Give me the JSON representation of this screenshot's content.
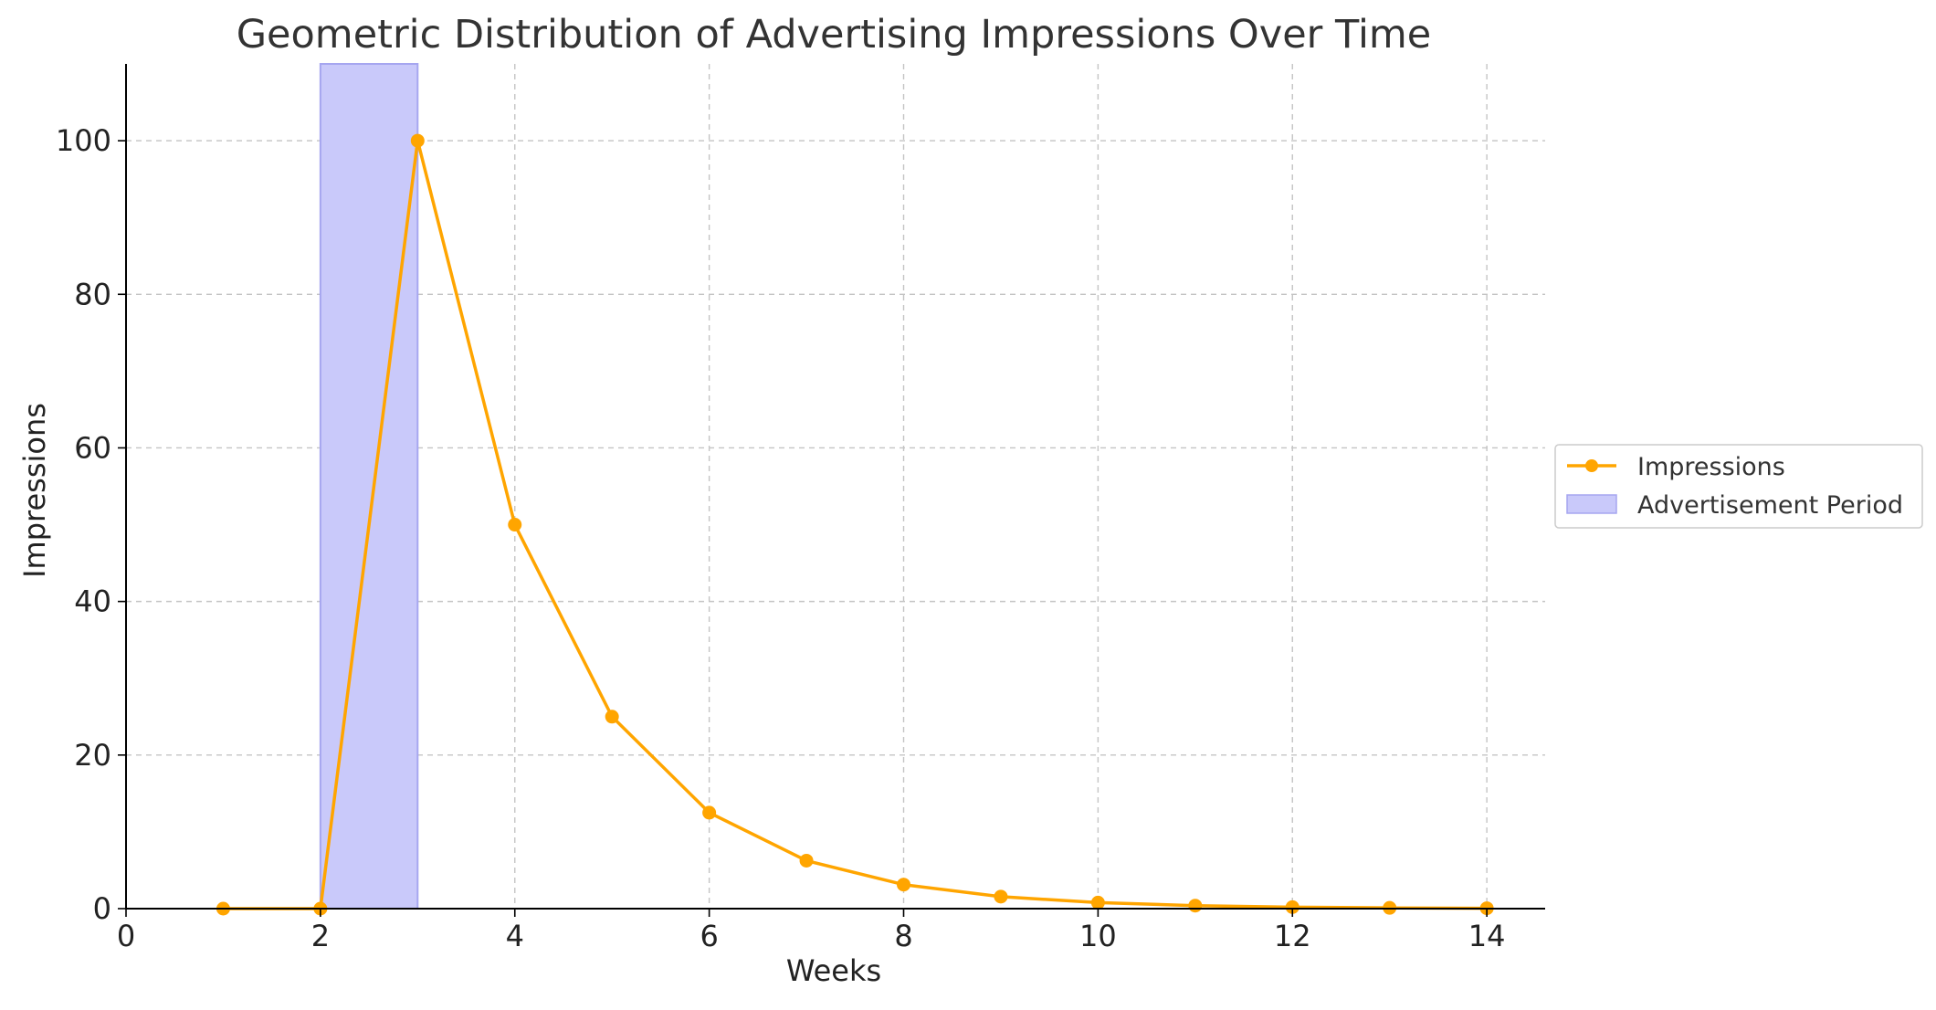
{
  "chart_data": {
    "type": "line",
    "title": "Geometric Distribution of Advertising Impressions Over Time",
    "xlabel": "Weeks",
    "ylabel": "Impressions",
    "xlim": [
      0,
      14.6
    ],
    "ylim": [
      0,
      110
    ],
    "x_ticks": [
      0,
      2,
      4,
      6,
      8,
      10,
      12,
      14
    ],
    "y_ticks": [
      0,
      20,
      40,
      60,
      80,
      100
    ],
    "grid": true,
    "legend_position": "center-right outside",
    "series": [
      {
        "name": "Impressions",
        "color": "#FFA500",
        "marker": "circle",
        "x": [
          1,
          2,
          3,
          4,
          5,
          6,
          7,
          8,
          9,
          10,
          11,
          12,
          13,
          14
        ],
        "values": [
          0,
          0,
          100,
          50,
          25,
          12.5,
          6.25,
          3.125,
          1.5625,
          0.78125,
          0.390625,
          0.1953125,
          0.09765625,
          0.048828125
        ]
      }
    ],
    "shaded_region": {
      "name": "Advertisement Period",
      "x_start": 2,
      "x_end": 3,
      "color": "#C9C9FA",
      "edge_color": "#A6A6F0"
    }
  }
}
